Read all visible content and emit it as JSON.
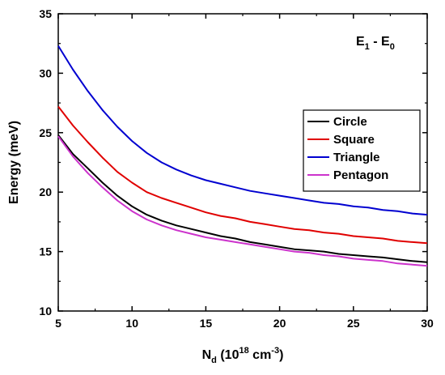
{
  "chart_data": {
    "type": "line",
    "xlabel": {
      "main": "N",
      "sub": "d",
      "rest": " (10",
      "sup1": "18",
      "mid": " cm",
      "sup2": "-3",
      "close": ")"
    },
    "ylabel": "Energy (meV)",
    "annotation": {
      "main1": "E",
      "sub1": "1",
      "dash": " - E",
      "sub2": "0"
    },
    "xlim": [
      5,
      30
    ],
    "ylim": [
      10,
      35
    ],
    "xticks": [
      "5",
      "10",
      "15",
      "20",
      "25",
      "30"
    ],
    "yticks": [
      "10",
      "15",
      "20",
      "25",
      "30",
      "35"
    ],
    "x": [
      5,
      6,
      7,
      8,
      9,
      10,
      11,
      12,
      13,
      14,
      15,
      16,
      17,
      18,
      19,
      20,
      21,
      22,
      23,
      24,
      25,
      26,
      27,
      28,
      29,
      30
    ],
    "series": [
      {
        "name": "Circle",
        "color": "#000000",
        "values": [
          24.8,
          23.2,
          22.0,
          20.8,
          19.7,
          18.8,
          18.1,
          17.6,
          17.2,
          16.9,
          16.6,
          16.3,
          16.1,
          15.8,
          15.6,
          15.4,
          15.2,
          15.1,
          15.0,
          14.8,
          14.7,
          14.6,
          14.5,
          14.35,
          14.2,
          14.1
        ]
      },
      {
        "name": "Square",
        "color": "#e00000",
        "values": [
          27.2,
          25.6,
          24.2,
          22.9,
          21.7,
          20.8,
          20.0,
          19.5,
          19.1,
          18.7,
          18.3,
          18.0,
          17.8,
          17.5,
          17.3,
          17.1,
          16.9,
          16.8,
          16.6,
          16.5,
          16.3,
          16.2,
          16.1,
          15.9,
          15.8,
          15.7
        ]
      },
      {
        "name": "Triangle",
        "color": "#0000d0",
        "values": [
          32.3,
          30.3,
          28.5,
          26.9,
          25.5,
          24.3,
          23.3,
          22.5,
          21.9,
          21.4,
          21.0,
          20.7,
          20.4,
          20.1,
          19.9,
          19.7,
          19.5,
          19.3,
          19.1,
          19.0,
          18.8,
          18.7,
          18.5,
          18.4,
          18.2,
          18.1
        ]
      },
      {
        "name": "Pentagon",
        "color": "#cc33cc",
        "values": [
          24.7,
          23.0,
          21.6,
          20.4,
          19.3,
          18.4,
          17.7,
          17.2,
          16.8,
          16.5,
          16.2,
          16.0,
          15.8,
          15.6,
          15.4,
          15.2,
          15.0,
          14.9,
          14.7,
          14.6,
          14.4,
          14.3,
          14.2,
          14.0,
          13.9,
          13.8
        ]
      }
    ],
    "legend_position": "right-middle",
    "grid": false
  }
}
